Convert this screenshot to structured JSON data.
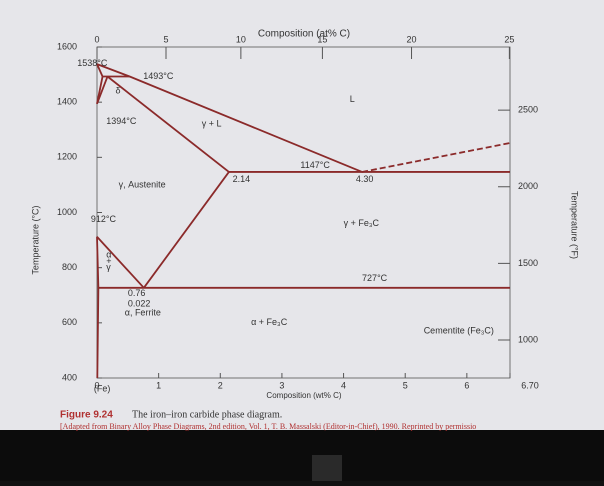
{
  "chart_data": {
    "type": "phase",
    "top_axis_label": "Composition (at% C)",
    "x_label": "Composition (wt% C)",
    "y_label": "Temperature (°C)",
    "y2_label": "Temperature (°F)",
    "xlim": [
      0,
      6.7
    ],
    "xticks": [
      0,
      1,
      2,
      3,
      4,
      5,
      6,
      {
        "value": 6.7,
        "label": "6.70"
      }
    ],
    "ylim": [
      400,
      1600
    ],
    "yticks": [
      400,
      600,
      800,
      1000,
      1200,
      1400,
      1600
    ],
    "y2lim": [
      752,
      2912
    ],
    "y2ticks": [
      1000,
      1500,
      2000,
      2500
    ],
    "x2ticks": [
      0,
      5,
      10,
      15,
      20,
      25
    ],
    "color": "#8b2a2a",
    "lines": [
      {
        "x": [
          0,
          0.53,
          4.3
        ],
        "y": [
          1538,
          1493,
          1147
        ]
      },
      {
        "x": [
          0,
          0.09,
          0.53
        ],
        "y": [
          1538,
          1493,
          1493
        ]
      },
      {
        "x": [
          0.09,
          0
        ],
        "y": [
          1493,
          1394
        ]
      },
      {
        "x": [
          0.17,
          0
        ],
        "y": [
          1493,
          1394
        ]
      },
      {
        "x": [
          0.17,
          2.14
        ],
        "y": [
          1493,
          1147
        ]
      },
      {
        "x": [
          2.14,
          6.7
        ],
        "y": [
          1147,
          1147
        ]
      },
      {
        "x": [
          2.14,
          0.76
        ],
        "y": [
          1147,
          727
        ]
      },
      {
        "x": [
          0,
          0.76
        ],
        "y": [
          912,
          727
        ]
      },
      {
        "x": [
          0,
          0.022,
          0.005
        ],
        "y": [
          912,
          727,
          400
        ]
      },
      {
        "x": [
          0.022,
          6.7
        ],
        "y": [
          727,
          727
        ]
      }
    ],
    "dashed_lines": [
      {
        "x": [
          4.3,
          6.7
        ],
        "y": [
          1147,
          1252
        ]
      }
    ],
    "annotations": [
      "1538°C",
      "1493°C",
      "δ",
      "1394°C",
      "γ + L",
      "L",
      "1147°C",
      "2.14",
      "4.30",
      "γ, Austenite",
      "912°C",
      "γ + Fe₃C",
      "727°C",
      "α",
      "+",
      "γ",
      "0.76",
      "0.022",
      "α, Ferrite",
      "α + Fe₃C",
      "Cementite (Fe₃C)",
      "(Fe)"
    ]
  },
  "caption": {
    "label": "Figure 9.24",
    "text": "The iron–iron carbide phase diagram.",
    "source": "[Adapted from Binary Alloy Phase Diagrams, 2nd edition, Vol. 1, T. B. Massalski (Editor-in-Chief), 1990. Reprinted by permissio"
  }
}
